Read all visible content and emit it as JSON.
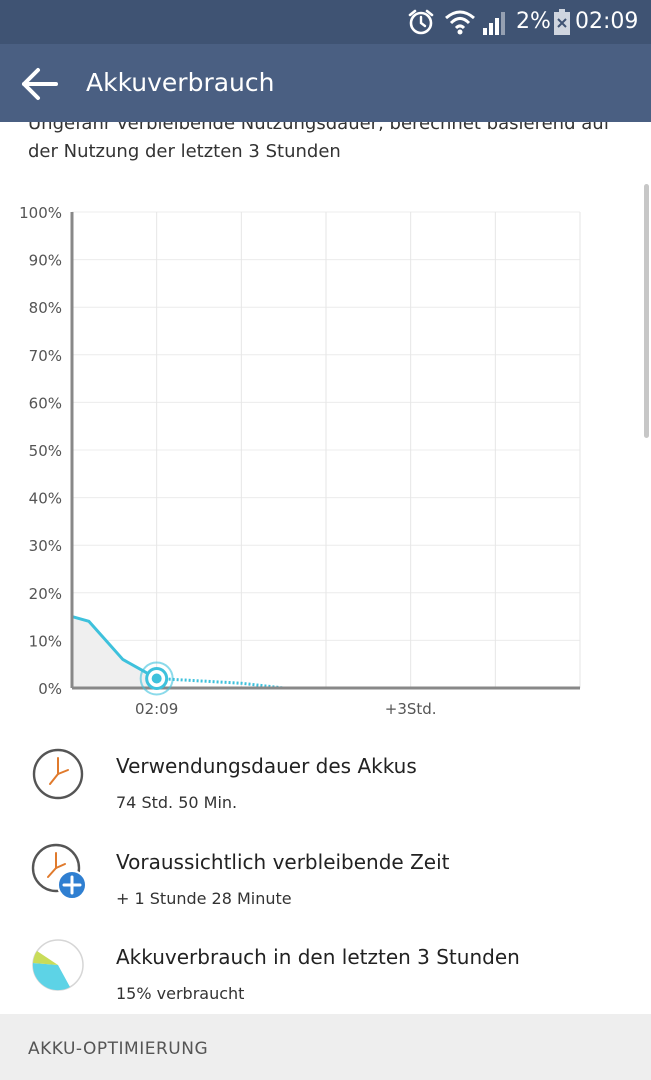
{
  "status_bar": {
    "icons": [
      "alarm-icon",
      "wifi-icon",
      "signal-icon",
      "battery-icon"
    ],
    "battery": "2%",
    "time": "02:09",
    "background": "#3f5373"
  },
  "app_bar": {
    "title": "Akkuverbrauch",
    "back_icon": "arrow-left-icon",
    "background": "#4a5f82"
  },
  "description": "Ungefähr verbleibende Nutzungsdauer, berechnet basierend auf der Nutzung der letzten 3 Stunden",
  "chart_data": {
    "type": "line",
    "y_ticks": [
      "100%",
      "90%",
      "80%",
      "70%",
      "60%",
      "50%",
      "40%",
      "30%",
      "20%",
      "10%",
      "0%"
    ],
    "x_ticks": [
      "02:09",
      "+3Std."
    ],
    "ylim": [
      0,
      100
    ],
    "xlim_hours": [
      -1,
      5
    ],
    "now_hour": 0,
    "history": {
      "x": [
        -1,
        -0.8,
        -0.6,
        -0.4,
        -0.2,
        0
      ],
      "y": [
        15,
        14,
        10,
        6,
        4,
        2
      ]
    },
    "projection": {
      "x": [
        0,
        0.5,
        1,
        1.5
      ],
      "y": [
        2,
        1.5,
        1,
        0
      ]
    },
    "grid": true,
    "line_color": "#3ec1dc",
    "fill_color": "#efefef"
  },
  "info_items": [
    {
      "icon": "clock-icon",
      "title": "Verwendungsdauer des Akkus",
      "value": "74 Std. 50 Min."
    },
    {
      "icon": "clock-plus-icon",
      "title": "Voraussichtlich verbleibende Zeit",
      "value": "+ 1 Stunde 28 Minute"
    },
    {
      "icon": "pie-chart-icon",
      "title": "Akkuverbrauch in den letzten 3 Stunden",
      "value": "15% verbraucht"
    }
  ],
  "section": {
    "title": "AKKU-OPTIMIERUNG"
  }
}
